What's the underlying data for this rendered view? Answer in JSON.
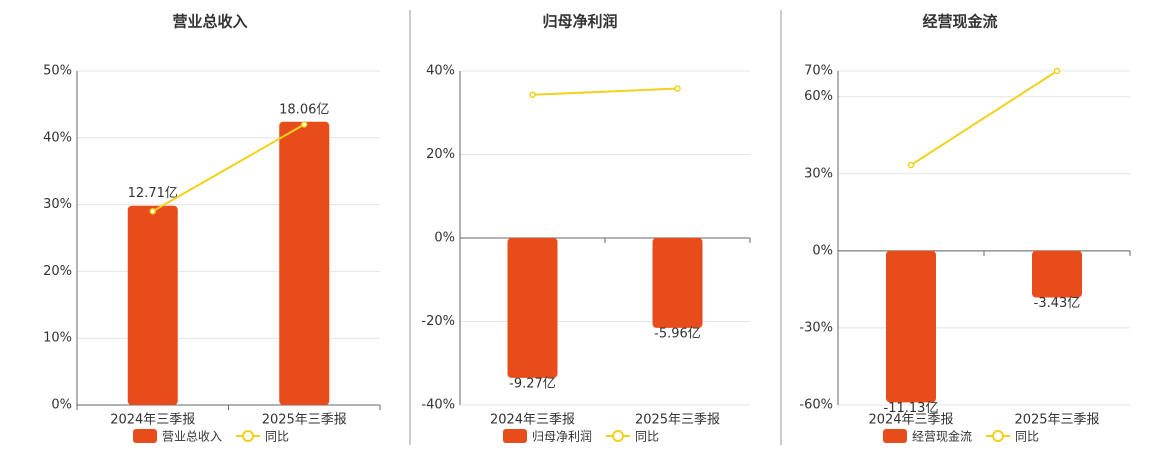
{
  "chart_data": [
    {
      "type": "bar",
      "title": "营业总收入",
      "categories": [
        "2024年三季报",
        "2025年三季报"
      ],
      "ylim": [
        0,
        50
      ],
      "yticks": [
        {
          "value": 0,
          "label": "0%"
        },
        {
          "value": 10,
          "label": "10%"
        },
        {
          "value": 20,
          "label": "20%"
        },
        {
          "value": 30,
          "label": "30%"
        },
        {
          "value": 40,
          "label": "40%"
        },
        {
          "value": 50,
          "label": "50%"
        }
      ],
      "y2lim": [
        0,
        21.3
      ],
      "grid": true,
      "series": [
        {
          "name": "营业总收入",
          "type": "bar",
          "axis": "y2",
          "color": "#e84c1a",
          "values": [
            12.71,
            18.06
          ],
          "value_labels": [
            "12.71亿",
            "18.06亿"
          ]
        },
        {
          "name": "同比",
          "type": "line",
          "color": "#f0d21c",
          "values": [
            29,
            42
          ]
        }
      ]
    },
    {
      "type": "bar",
      "title": "归母净利润",
      "categories": [
        "2024年三季报",
        "2025年三季报"
      ],
      "ylim": [
        -40,
        40
      ],
      "yticks": [
        {
          "value": -40,
          "label": "-40%"
        },
        {
          "value": -20,
          "label": "-20%"
        },
        {
          "value": 0,
          "label": "0%"
        },
        {
          "value": 20,
          "label": "20%"
        },
        {
          "value": 40,
          "label": "40%"
        }
      ],
      "y2lim": [
        -11.07,
        11.07
      ],
      "grid": true,
      "series": [
        {
          "name": "归母净利润",
          "type": "bar",
          "axis": "y2",
          "color": "#e84c1a",
          "values": [
            -9.27,
            -5.96
          ],
          "value_labels": [
            "-9.27亿",
            "-5.96亿"
          ]
        },
        {
          "name": "同比",
          "type": "line",
          "color": "#f0d21c",
          "values": [
            34.3,
            35.8
          ]
        }
      ]
    },
    {
      "type": "bar",
      "title": "经营现金流",
      "categories": [
        "2024年三季报",
        "2025年三季报"
      ],
      "ylim": [
        -60,
        70
      ],
      "yticks": [
        {
          "value": -60,
          "label": "-60%"
        },
        {
          "value": -30,
          "label": "-30%"
        },
        {
          "value": 0,
          "label": "0%"
        },
        {
          "value": 30,
          "label": "30%"
        },
        {
          "value": 60,
          "label": "60%"
        },
        {
          "value": 70,
          "label": "70%"
        }
      ],
      "y2lim": [
        -11.32,
        13.2
      ],
      "grid": true,
      "series": [
        {
          "name": "经营现金流",
          "type": "bar",
          "axis": "y2",
          "color": "#e84c1a",
          "values": [
            -11.13,
            -3.43
          ],
          "value_labels": [
            "-11.13亿",
            "-3.43亿"
          ]
        },
        {
          "name": "同比",
          "type": "line",
          "color": "#f0d21c",
          "values": [
            33.4,
            70
          ]
        }
      ]
    }
  ]
}
